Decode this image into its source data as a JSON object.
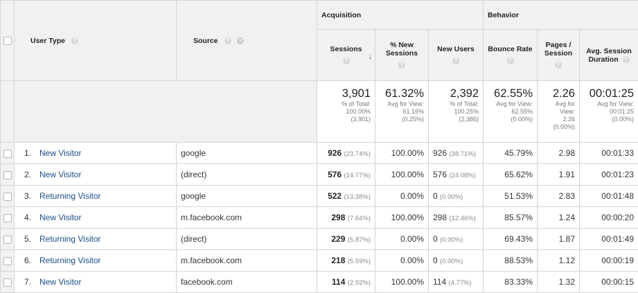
{
  "groups": {
    "acquisition": "Acquisition",
    "behavior": "Behavior"
  },
  "columns": {
    "user_type": "User Type",
    "source": "Source",
    "sessions": "Sessions",
    "new_sessions_1": "% New",
    "new_sessions_2": "Sessions",
    "new_users": "New Users",
    "bounce_rate": "Bounce Rate",
    "pages_1": "Pages /",
    "pages_2": "Session",
    "avg_dur_1": "Avg. Session",
    "avg_dur_2": "Duration",
    "help_glyph": "?",
    "remove_glyph": "✕",
    "sort_glyph": "↓"
  },
  "summary": {
    "sessions": {
      "value": "3,901",
      "l1": "% of Total:",
      "l2": "100.00%",
      "l3": "(3,901)"
    },
    "new_sessions": {
      "value": "61.32%",
      "l1": "Avg for View:",
      "l2": "61.16%",
      "l3": "(0.25%)"
    },
    "new_users": {
      "value": "2,392",
      "l1": "% of Total:",
      "l2": "100.25%",
      "l3": "(2,386)"
    },
    "bounce_rate": {
      "value": "62.55%",
      "l1": "Avg for View:",
      "l2": "62.55%",
      "l3": "(0.00%)"
    },
    "pages": {
      "value": "2.26",
      "l1": "Avg for",
      "l2": "View:",
      "l3": "2.26",
      "l4": "(0.00%)"
    },
    "avg_dur": {
      "value": "00:01:25",
      "l1": "Avg for View:",
      "l2": "00:01:25",
      "l3": "(0.00%)"
    }
  },
  "rows": [
    {
      "n": "1.",
      "user": "New Visitor",
      "source": "google",
      "sessions": "926",
      "sess_pct": "(23.74%)",
      "new_sess": "100.00%",
      "new_users": "926",
      "nu_pct": "(38.71%)",
      "bounce": "45.79%",
      "pages": "2.98",
      "dur": "00:01:33"
    },
    {
      "n": "2.",
      "user": "New Visitor",
      "source": "(direct)",
      "sessions": "576",
      "sess_pct": "(14.77%)",
      "new_sess": "100.00%",
      "new_users": "576",
      "nu_pct": "(24.08%)",
      "bounce": "65.62%",
      "pages": "1.91",
      "dur": "00:01:23"
    },
    {
      "n": "3.",
      "user": "Returning Visitor",
      "source": "google",
      "sessions": "522",
      "sess_pct": "(13.38%)",
      "new_sess": "0.00%",
      "new_users": "0",
      "nu_pct": "(0.00%)",
      "bounce": "51.53%",
      "pages": "2.83",
      "dur": "00:01:48"
    },
    {
      "n": "4.",
      "user": "New Visitor",
      "source": "m.facebook.com",
      "sessions": "298",
      "sess_pct": "(7.64%)",
      "new_sess": "100.00%",
      "new_users": "298",
      "nu_pct": "(12.46%)",
      "bounce": "85.57%",
      "pages": "1.24",
      "dur": "00:00:20"
    },
    {
      "n": "5.",
      "user": "Returning Visitor",
      "source": "(direct)",
      "sessions": "229",
      "sess_pct": "(5.87%)",
      "new_sess": "0.00%",
      "new_users": "0",
      "nu_pct": "(0.00%)",
      "bounce": "69.43%",
      "pages": "1.87",
      "dur": "00:01:49"
    },
    {
      "n": "6.",
      "user": "Returning Visitor",
      "source": "m.facebook.com",
      "sessions": "218",
      "sess_pct": "(5.59%)",
      "new_sess": "0.00%",
      "new_users": "0",
      "nu_pct": "(0.00%)",
      "bounce": "88.53%",
      "pages": "1.12",
      "dur": "00:00:19"
    },
    {
      "n": "7.",
      "user": "New Visitor",
      "source": "facebook.com",
      "sessions": "114",
      "sess_pct": "(2.92%)",
      "new_sess": "100.00%",
      "new_users": "114",
      "nu_pct": "(4.77%)",
      "bounce": "83.33%",
      "pages": "1.32",
      "dur": "00:00:15"
    }
  ]
}
